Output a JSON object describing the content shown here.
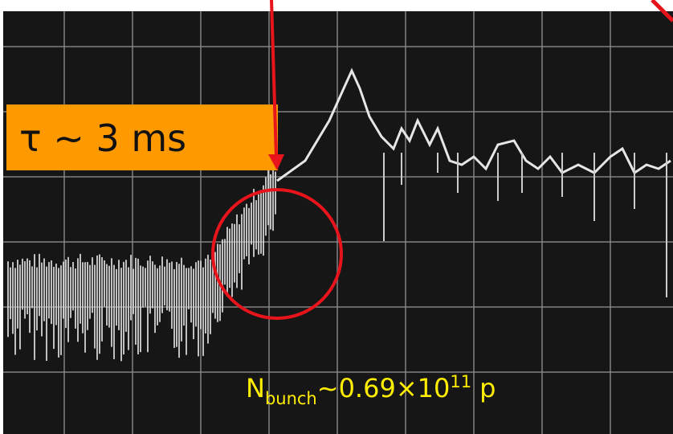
{
  "annotations": {
    "tau": "τ ~ 3 ms",
    "bunch": {
      "symbol": "N",
      "subscript": "bunch",
      "value": "~0.69×10",
      "exponent": "11",
      "unit": "p"
    }
  }
}
